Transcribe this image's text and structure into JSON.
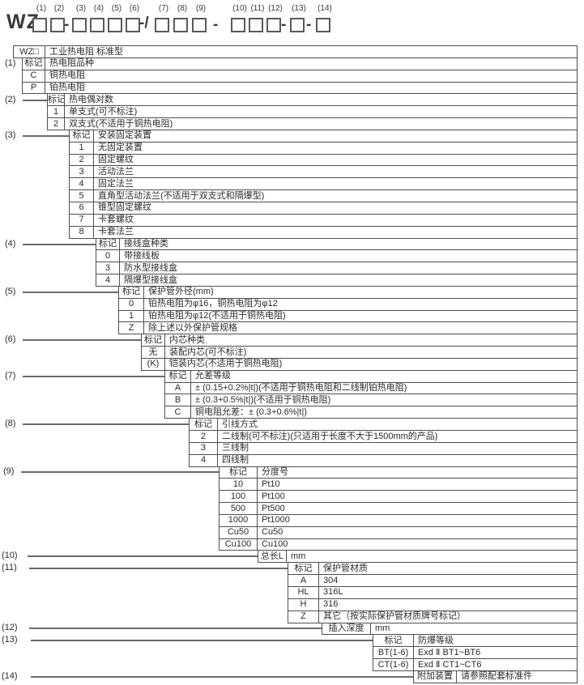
{
  "code_header": {
    "prefix": "WZ",
    "slots": [
      {
        "num": "(1)"
      },
      {
        "num": "(2)"
      },
      {
        "num": "(3)"
      },
      {
        "num": "(4)"
      },
      {
        "num": "(5)"
      },
      {
        "num": "(6)"
      },
      {
        "num": "(7)"
      },
      {
        "num": "(8)"
      },
      {
        "num": "(9)"
      },
      {
        "num": "(10)"
      },
      {
        "num": "(11)"
      },
      {
        "num": "(12)"
      },
      {
        "num": "(13)"
      },
      {
        "num": "(14)"
      }
    ],
    "separators": [
      "-",
      "-/",
      "-",
      "-",
      "-"
    ]
  },
  "colors": {
    "border": "#4f4f4f",
    "text": "#2b2b2b",
    "background": "#ffffff"
  },
  "sections": [
    {
      "callout": "",
      "rows": [
        {
          "code": "WZ□",
          "desc": "工业热电阻 标准型"
        }
      ]
    },
    {
      "callout": "(1)",
      "rows": [
        {
          "code": "标记",
          "desc": "热电阻品种"
        },
        {
          "code": "C",
          "desc": "铜热电阻"
        },
        {
          "code": "P",
          "desc": "铂热电阻"
        }
      ]
    },
    {
      "callout": "(2)",
      "rows": [
        {
          "code": "标记",
          "desc": "热电偶对数"
        },
        {
          "code": "1",
          "desc": "单支式(可不标注)"
        },
        {
          "code": "2",
          "desc": "双支式(不适用于铜热电阻)"
        }
      ]
    },
    {
      "callout": "(3)",
      "rows": [
        {
          "code": "标记",
          "desc": "安装固定装置"
        },
        {
          "code": "1",
          "desc": "无固定装置"
        },
        {
          "code": "2",
          "desc": "固定螺纹"
        },
        {
          "code": "3",
          "desc": "活动法兰"
        },
        {
          "code": "4",
          "desc": "固定法兰"
        },
        {
          "code": "5",
          "desc": "直角型活动法兰(不适用于双支式和隔爆型)"
        },
        {
          "code": "6",
          "desc": "锥型固定螺纹"
        },
        {
          "code": "7",
          "desc": "卡套螺纹"
        },
        {
          "code": "8",
          "desc": "卡套法兰"
        }
      ]
    },
    {
      "callout": "(4)",
      "rows": [
        {
          "code": "标记",
          "desc": "接线盒种类"
        },
        {
          "code": "0",
          "desc": "带接线板"
        },
        {
          "code": "3",
          "desc": "防水型接线盒"
        },
        {
          "code": "4",
          "desc": "隔爆型接线盒"
        }
      ]
    },
    {
      "callout": "(5)",
      "rows": [
        {
          "code": "标记",
          "desc": "保护管外径(mm)"
        },
        {
          "code": "0",
          "desc": "铂热电阻为φ16，铜热电阻为φ12"
        },
        {
          "code": "1",
          "desc": "铂热电阻为φ12(不适用于铜热电阻)"
        },
        {
          "code": "Z",
          "desc": "除上述以外保护管规格"
        }
      ]
    },
    {
      "callout": "(6)",
      "rows": [
        {
          "code": "标记",
          "desc": "内芯种类"
        },
        {
          "code": "无",
          "desc": "装配内芯(可不标注)"
        },
        {
          "code": "(K)",
          "desc": "铠装内芯(不适用于铜热电阻)"
        }
      ]
    },
    {
      "callout": "(7)",
      "rows": [
        {
          "code": "标记",
          "desc": "允差等级"
        },
        {
          "code": "A",
          "desc": "± (0.15+0.2%|t|)(不适用于铜热电阻和二线制铂热电阻)"
        },
        {
          "code": "B",
          "desc": "± (0.3+0.5%|t|)(不适用于铜热电阻)"
        },
        {
          "code": "C",
          "desc": "铜电阻允差：± (0.3+0.6%|t|)"
        }
      ]
    },
    {
      "callout": "(8)",
      "rows": [
        {
          "code": "标记",
          "desc": "引线方式"
        },
        {
          "code": "2",
          "desc": "二线制(可不标注)(只适用于长度不大于1500mm的产品)"
        },
        {
          "code": "3",
          "desc": "三线制"
        },
        {
          "code": "4",
          "desc": "四线制"
        }
      ]
    },
    {
      "callout": "(9)",
      "rows": [
        {
          "code": "标记",
          "desc": "分度号"
        },
        {
          "code": "10",
          "desc": "Pt10"
        },
        {
          "code": "100",
          "desc": "Pt100"
        },
        {
          "code": "500",
          "desc": "Pt500"
        },
        {
          "code": "1000",
          "desc": "Pt1000"
        },
        {
          "code": "Cu50",
          "desc": "Cu50"
        },
        {
          "code": "Cu100",
          "desc": "Cu100"
        }
      ]
    },
    {
      "callout": "(10)",
      "rows": [
        {
          "code": "总长L",
          "desc": "mm"
        }
      ]
    },
    {
      "callout": "(11)",
      "rows": [
        {
          "code": "标记",
          "desc": "保护管材质"
        },
        {
          "code": "A",
          "desc": "304"
        },
        {
          "code": "HL",
          "desc": "316L"
        },
        {
          "code": "H",
          "desc": "316"
        },
        {
          "code": "Z",
          "desc": "其它（按实际保护管材质牌号标记）"
        }
      ]
    },
    {
      "callout": "(12)",
      "rows": [
        {
          "code": "插入深度",
          "desc": "mm"
        }
      ]
    },
    {
      "callout": "(13)",
      "rows": [
        {
          "code": "标记",
          "desc": "防爆等级"
        },
        {
          "code": "BT(1-6)",
          "desc": "Exd Ⅱ BT1~BT6"
        },
        {
          "code": "CT(1-6)",
          "desc": "Exd Ⅱ CT1~CT6"
        }
      ]
    },
    {
      "callout": "(14)",
      "rows": [
        {
          "code": "附加装置",
          "desc": "请参照配套标准件"
        }
      ]
    }
  ]
}
